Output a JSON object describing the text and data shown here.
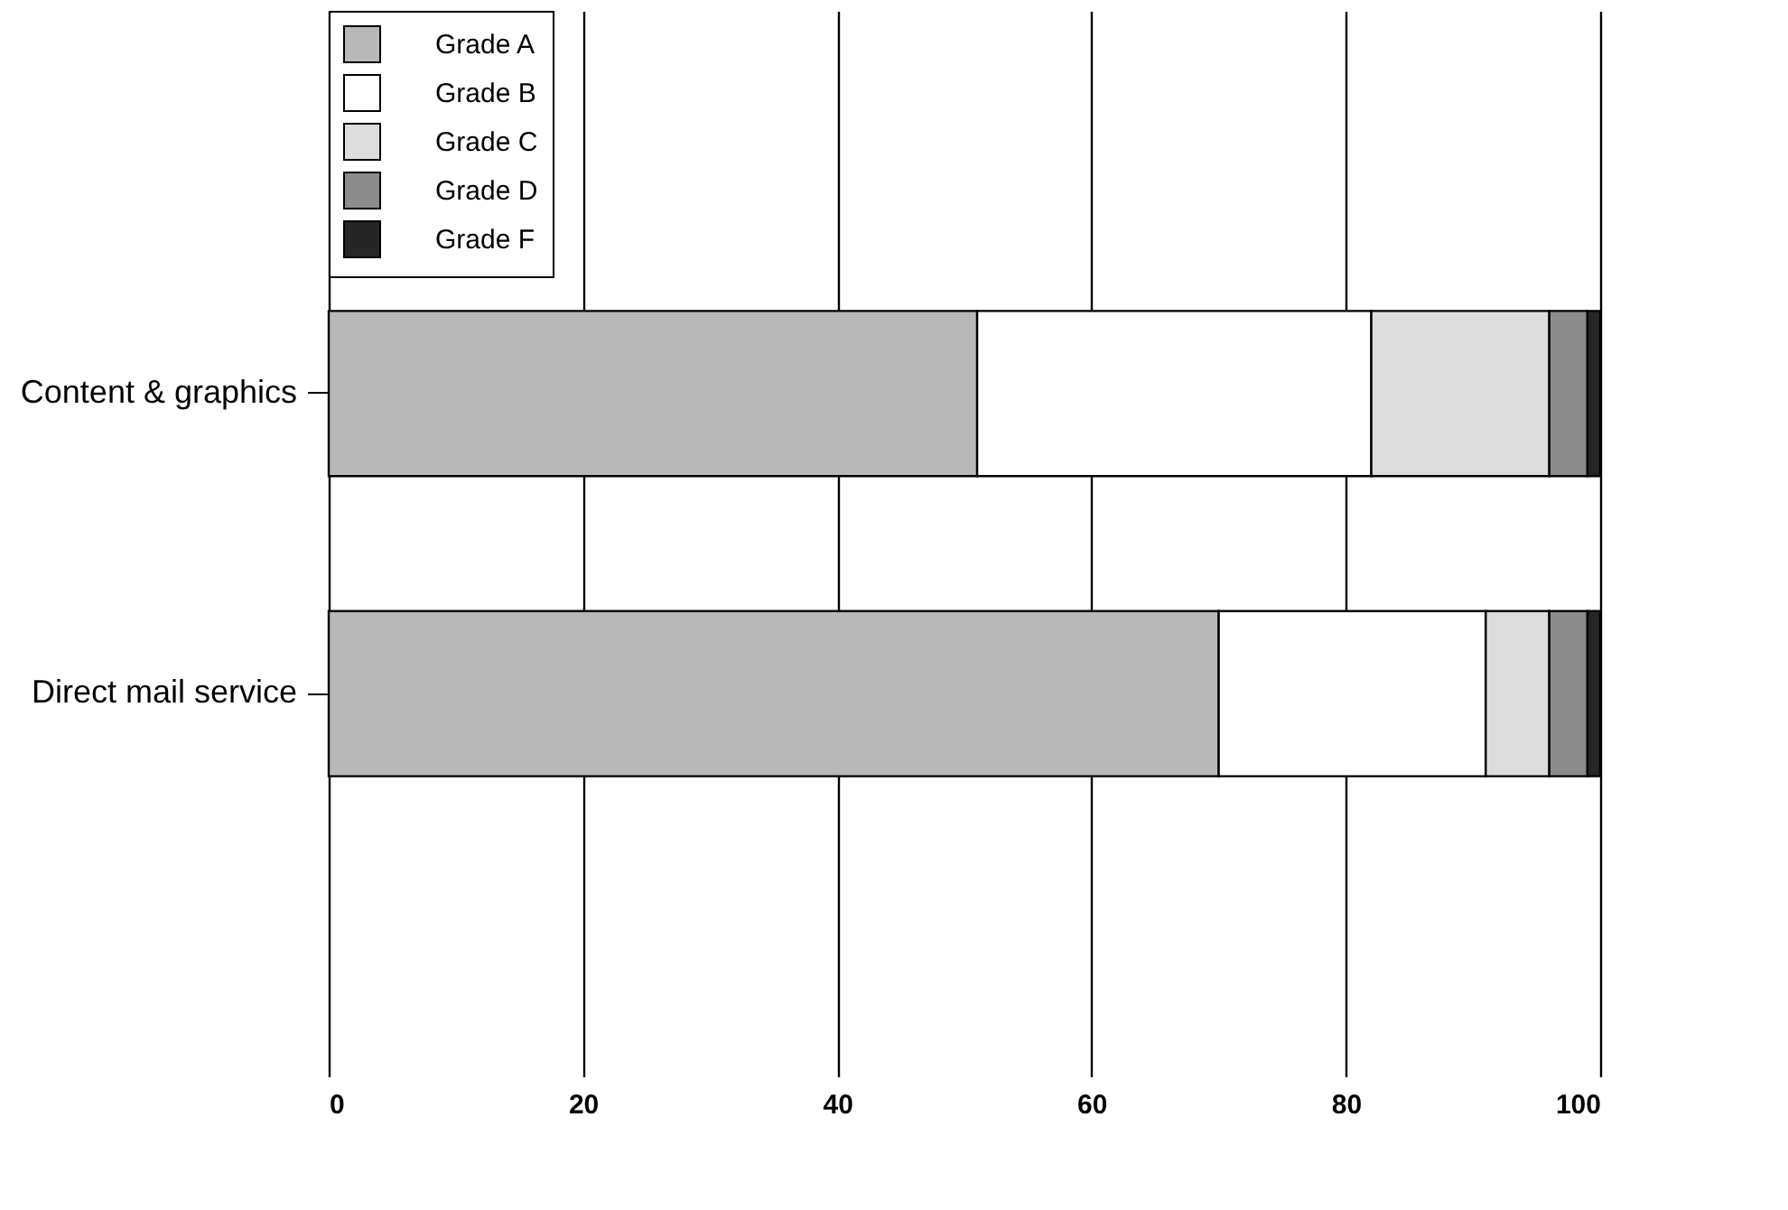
{
  "chart_data": {
    "type": "bar",
    "orientation": "horizontal",
    "stacked": true,
    "categories": [
      "Content & graphics",
      "Direct mail service"
    ],
    "series": [
      {
        "name": "Grade A",
        "color": "#b8b8b8",
        "values": [
          51,
          70
        ]
      },
      {
        "name": "Grade B",
        "color": "#ffffff",
        "values": [
          31,
          21
        ]
      },
      {
        "name": "Grade C",
        "color": "#dcdcdc",
        "values": [
          14,
          5
        ]
      },
      {
        "name": "Grade D",
        "color": "#8c8c8c",
        "values": [
          3,
          3
        ]
      },
      {
        "name": "Grade F",
        "color": "#262626",
        "values": [
          1,
          1
        ]
      }
    ],
    "xlim": [
      0,
      100
    ],
    "xticks": [
      0,
      20,
      40,
      60,
      80,
      100
    ],
    "grid": "x",
    "legend": "top left"
  }
}
